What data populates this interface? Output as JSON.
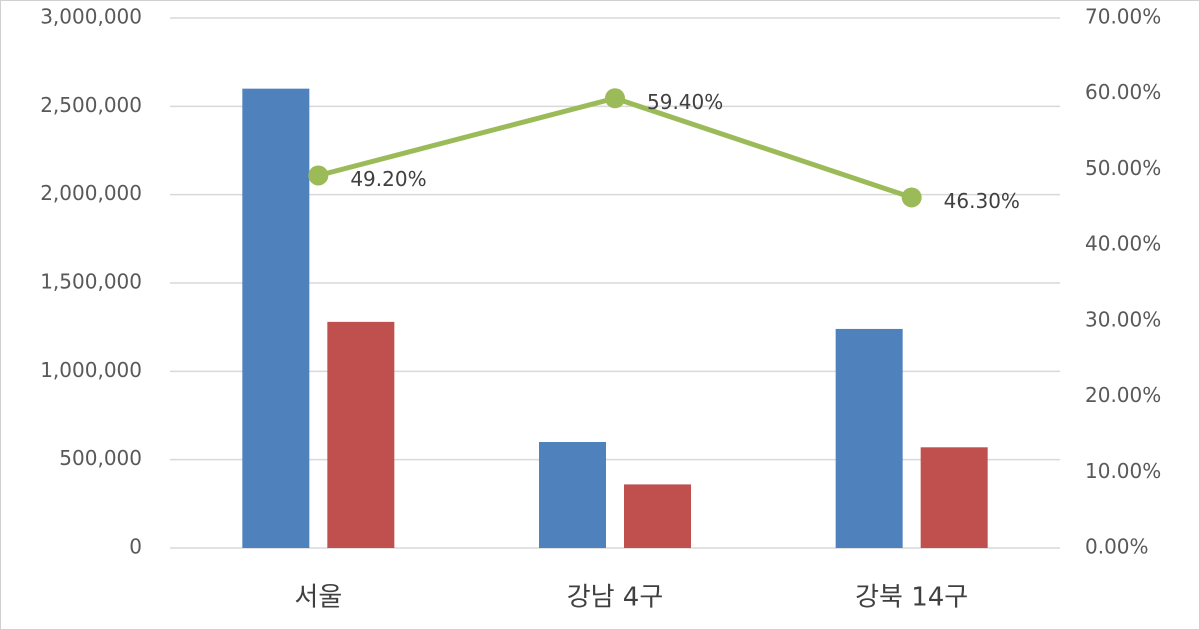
{
  "chart_data": {
    "type": "bar",
    "categories": [
      "서울",
      "강남 4구",
      "강북 14구"
    ],
    "series": [
      {
        "color": "#4f81bd",
        "values": [
          2600000,
          600000,
          1240000
        ]
      },
      {
        "color": "#c0504d",
        "values": [
          1280000,
          360000,
          570000
        ]
      },
      {
        "type": "line",
        "axis": "y2",
        "color": "#9bbb59",
        "values": [
          49.2,
          59.4,
          46.3
        ],
        "value_labels": [
          "49.20%",
          "59.40%",
          "46.30%"
        ]
      }
    ],
    "ylim": [
      0,
      3000000
    ],
    "yticks": [
      0,
      {
        "value": 500000,
        "label": "500,000"
      },
      {
        "value": 1000000,
        "label": "1,000,000"
      },
      {
        "value": 1500000,
        "label": "1,500,000"
      },
      {
        "value": 2000000,
        "label": "2,000,000"
      },
      {
        "value": 2500000,
        "label": "2,500,000"
      },
      {
        "value": 3000000,
        "label": "3,000,000"
      }
    ],
    "y2lim": [
      0,
      70
    ],
    "y2ticks": [
      {
        "value": 0,
        "label": "0.00%"
      },
      {
        "value": 10,
        "label": "10.00%"
      },
      {
        "value": 20,
        "label": "20.00%"
      },
      {
        "value": 30,
        "label": "30.00%"
      },
      {
        "value": 40,
        "label": "40.00%"
      },
      {
        "value": 50,
        "label": "50.00%"
      },
      {
        "value": 60,
        "label": "60.00%"
      },
      {
        "value": 70,
        "label": "70.00%"
      }
    ],
    "grid": true
  }
}
